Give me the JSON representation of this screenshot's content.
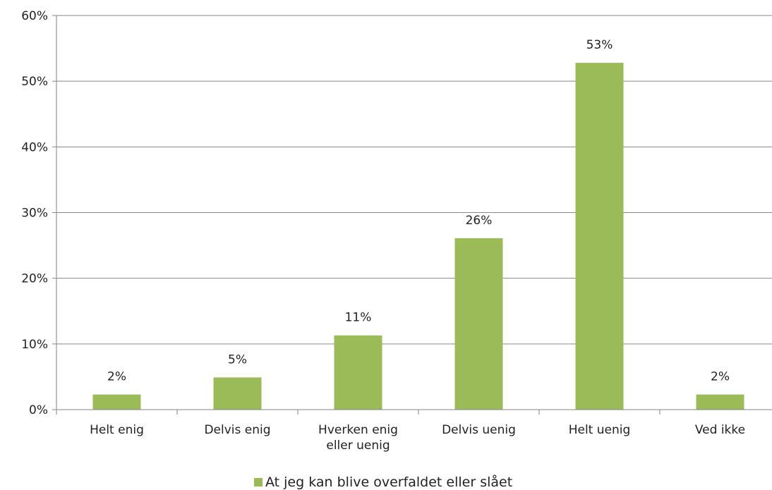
{
  "chart_data": {
    "type": "bar",
    "categories": [
      "Helt enig",
      "Delvis enig",
      "Hverken enig eller uenig",
      "Delvis uenig",
      "Helt uenig",
      "Ved ikke"
    ],
    "category_lines": [
      [
        "Helt enig"
      ],
      [
        "Delvis enig"
      ],
      [
        "Hverken enig",
        "eller uenig"
      ],
      [
        "Delvis uenig"
      ],
      [
        "Helt uenig"
      ],
      [
        "Ved ikke"
      ]
    ],
    "series": [
      {
        "name": "At jeg kan blive overfaldet eller slået",
        "values": [
          2.3,
          4.9,
          11.3,
          26.1,
          52.8,
          2.3
        ],
        "labels": [
          "2%",
          "5%",
          "11%",
          "26%",
          "53%",
          "2%"
        ],
        "color": "#9bbb59"
      }
    ],
    "ylim": [
      0,
      60
    ],
    "yticks": [
      0,
      10,
      20,
      30,
      40,
      50,
      60
    ],
    "ytick_labels": [
      "0%",
      "10%",
      "20%",
      "30%",
      "40%",
      "50%",
      "60%"
    ],
    "grid": true,
    "gridline_color": "#868686",
    "legend_position": "bottom",
    "title": "",
    "xlabel": "",
    "ylabel": ""
  }
}
